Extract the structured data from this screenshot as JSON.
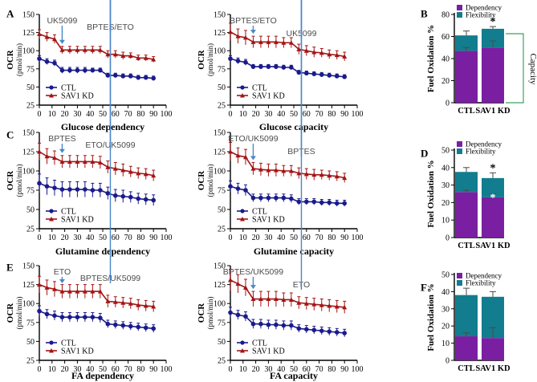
{
  "colors": {
    "ctl": "#1a1a8c",
    "kd": "#a31414",
    "dependency": "#7a1fa2",
    "flexibility": "#127d8e",
    "arrow": "#4a86c8",
    "bracket": "#3aa55e"
  },
  "ocr_axis": {
    "ylabel": "OCR",
    "ylabel_unit": "(pmol/min)",
    "yticks": [
      "25",
      "50",
      "75",
      "100",
      "125",
      "150"
    ],
    "xticks": [
      "0",
      "10",
      "20",
      "30",
      "40",
      "50",
      "60",
      "70",
      "80",
      "90",
      "100"
    ]
  },
  "bar_axis": {
    "ylabel": "Fuel Oxidation %"
  },
  "bar_legend": {
    "dependency": "Dependency",
    "flexibility": "Flexibility"
  },
  "capacity_label": "Capacity",
  "chart_data": [
    {
      "id": "A1",
      "type": "line",
      "panel_letter": "A",
      "title": "Glucose dependency",
      "xlim": [
        0,
        100
      ],
      "ylim": [
        25,
        150
      ],
      "x": [
        0,
        6,
        12,
        18,
        24,
        30,
        36,
        42,
        48,
        54,
        60,
        66,
        72,
        78,
        84,
        90
      ],
      "series": [
        {
          "name": "CTL",
          "values": [
            89,
            85,
            83,
            73,
            73,
            73,
            73,
            73,
            73,
            66,
            66,
            65,
            65,
            63,
            63,
            62
          ],
          "errors": [
            4,
            4,
            4,
            4,
            4,
            4,
            4,
            3,
            3,
            3,
            3,
            3,
            3,
            3,
            3,
            3
          ]
        },
        {
          "name": "SAV1 KD",
          "values": [
            123,
            119,
            116,
            101,
            101,
            101,
            101,
            101,
            101,
            95,
            95,
            93,
            93,
            90,
            90,
            88
          ],
          "errors": [
            6,
            6,
            6,
            5,
            5,
            5,
            5,
            5,
            5,
            5,
            5,
            5,
            4,
            4,
            4,
            4
          ]
        }
      ],
      "annotations": [
        {
          "text": "UK5099",
          "x": 18
        },
        {
          "text": "BPTES/ETO",
          "x": 56
        }
      ]
    },
    {
      "id": "A2",
      "type": "line",
      "panel_letter": "",
      "title": "Glucose capacity",
      "xlim": [
        0,
        100
      ],
      "ylim": [
        25,
        150
      ],
      "x": [
        0,
        6,
        12,
        18,
        24,
        30,
        36,
        42,
        48,
        54,
        60,
        66,
        72,
        78,
        84,
        90
      ],
      "series": [
        {
          "name": "CTL",
          "values": [
            89,
            86,
            84,
            78,
            78,
            78,
            78,
            77,
            77,
            70,
            69,
            68,
            67,
            66,
            65,
            64
          ],
          "errors": [
            4,
            4,
            4,
            3,
            3,
            3,
            3,
            3,
            3,
            3,
            3,
            3,
            3,
            3,
            3,
            3
          ]
        },
        {
          "name": "SAV1 KD",
          "values": [
            126,
            120,
            118,
            112,
            112,
            112,
            112,
            111,
            111,
            102,
            100,
            98,
            97,
            95,
            94,
            92
          ],
          "errors": [
            12,
            10,
            10,
            8,
            8,
            8,
            8,
            7,
            7,
            7,
            7,
            7,
            6,
            6,
            6,
            6
          ]
        }
      ],
      "annotations": [
        {
          "text": "BPTES/ETO",
          "x": 18
        },
        {
          "text": "UK5099",
          "x": 56
        }
      ]
    },
    {
      "id": "B",
      "type": "bar",
      "panel_letter": "B",
      "title": "",
      "ylim": [
        0,
        80
      ],
      "yticks": [
        "0",
        "20",
        "40",
        "60",
        "80"
      ],
      "categories": [
        "CTL",
        "SAV1 KD"
      ],
      "series": [
        {
          "name": "Dependency",
          "values": [
            47,
            50
          ],
          "errors": [
            3,
            6
          ]
        },
        {
          "name": "Flexibility",
          "values": [
            14,
            17
          ],
          "errors": [
            4,
            2
          ]
        }
      ],
      "stars": [
        {
          "category": 1,
          "series": "total",
          "text": "*"
        }
      ]
    },
    {
      "id": "C1",
      "type": "line",
      "panel_letter": "C",
      "title": "Glutamine dependency",
      "xlim": [
        0,
        100
      ],
      "ylim": [
        25,
        150
      ],
      "x": [
        0,
        6,
        12,
        18,
        24,
        30,
        36,
        42,
        48,
        54,
        60,
        66,
        72,
        78,
        84,
        90
      ],
      "series": [
        {
          "name": "CTL",
          "values": [
            84,
            80,
            78,
            76,
            76,
            76,
            76,
            75,
            75,
            71,
            68,
            67,
            66,
            64,
            63,
            62
          ],
          "errors": [
            12,
            11,
            10,
            10,
            10,
            10,
            10,
            9,
            9,
            8,
            8,
            8,
            7,
            7,
            7,
            7
          ]
        },
        {
          "name": "SAV1 KD",
          "values": [
            125,
            119,
            117,
            112,
            112,
            112,
            112,
            112,
            111,
            105,
            103,
            101,
            99,
            97,
            96,
            94
          ],
          "errors": [
            11,
            10,
            9,
            8,
            8,
            8,
            8,
            8,
            8,
            8,
            8,
            8,
            7,
            7,
            7,
            7
          ]
        }
      ],
      "annotations": [
        {
          "text": "BPTES",
          "x": 18
        },
        {
          "text": "ETO/UK5099",
          "x": 56
        }
      ]
    },
    {
      "id": "C2",
      "type": "line",
      "panel_letter": "",
      "title": "Glutamine capacity",
      "xlim": [
        0,
        100
      ],
      "ylim": [
        25,
        150
      ],
      "x": [
        0,
        6,
        12,
        18,
        24,
        30,
        36,
        42,
        48,
        54,
        60,
        66,
        72,
        78,
        84,
        90
      ],
      "series": [
        {
          "name": "CTL",
          "values": [
            80,
            77,
            75,
            65,
            65,
            65,
            65,
            65,
            64,
            60,
            60,
            60,
            59,
            59,
            58,
            58
          ],
          "errors": [
            7,
            7,
            7,
            5,
            5,
            5,
            5,
            5,
            5,
            4,
            4,
            4,
            4,
            4,
            4,
            4
          ]
        },
        {
          "name": "SAV1 KD",
          "values": [
            125,
            120,
            118,
            103,
            102,
            101,
            101,
            100,
            100,
            97,
            96,
            95,
            95,
            94,
            93,
            91
          ],
          "errors": [
            12,
            10,
            10,
            8,
            8,
            8,
            8,
            7,
            7,
            7,
            7,
            7,
            6,
            6,
            6,
            6
          ]
        }
      ],
      "annotations": [
        {
          "text": "ETO/UK5099",
          "x": 18
        },
        {
          "text": "BPTES",
          "x": 56
        }
      ]
    },
    {
      "id": "D",
      "type": "bar",
      "panel_letter": "D",
      "title": "",
      "ylim": [
        0,
        50
      ],
      "yticks": [
        "0",
        "10",
        "20",
        "30",
        "40",
        "50"
      ],
      "categories": [
        "CTL",
        "SAV1 KD"
      ],
      "series": [
        {
          "name": "Dependency",
          "values": [
            26,
            23
          ],
          "errors": [
            1,
            2
          ]
        },
        {
          "name": "Flexibility",
          "values": [
            11.5,
            11
          ],
          "errors": [
            2.5,
            3
          ]
        }
      ],
      "stars": [
        {
          "category": 1,
          "series": "total",
          "text": "*"
        },
        {
          "category": 1,
          "series": "dependency",
          "text": "*"
        }
      ]
    },
    {
      "id": "E1",
      "type": "line",
      "panel_letter": "E",
      "title": "FA dependency",
      "xlim": [
        0,
        100
      ],
      "ylim": [
        25,
        150
      ],
      "x": [
        0,
        6,
        12,
        18,
        24,
        30,
        36,
        42,
        48,
        54,
        60,
        66,
        72,
        78,
        84,
        90
      ],
      "series": [
        {
          "name": "CTL",
          "values": [
            90,
            86,
            84,
            82,
            82,
            82,
            82,
            82,
            81,
            73,
            72,
            71,
            70,
            69,
            68,
            67
          ],
          "errors": [
            7,
            6,
            6,
            6,
            6,
            6,
            6,
            6,
            6,
            5,
            5,
            5,
            5,
            5,
            5,
            5
          ]
        },
        {
          "name": "SAV1 KD",
          "values": [
            125,
            121,
            119,
            116,
            116,
            116,
            116,
            116,
            116,
            103,
            102,
            101,
            100,
            98,
            97,
            96
          ],
          "errors": [
            11,
            10,
            10,
            9,
            9,
            9,
            9,
            9,
            9,
            8,
            7,
            7,
            7,
            7,
            7,
            7
          ]
        }
      ],
      "annotations": [
        {
          "text": "ETO",
          "x": 18
        },
        {
          "text": "BPTES/UK5099",
          "x": 56
        }
      ]
    },
    {
      "id": "E2",
      "type": "line",
      "panel_letter": "",
      "title": "FA capacity",
      "xlim": [
        0,
        100
      ],
      "ylim": [
        25,
        150
      ],
      "x": [
        0,
        6,
        12,
        18,
        24,
        30,
        36,
        42,
        48,
        54,
        60,
        66,
        72,
        78,
        84,
        90
      ],
      "series": [
        {
          "name": "CTL",
          "values": [
            88,
            85,
            83,
            73,
            73,
            72,
            72,
            71,
            71,
            67,
            66,
            65,
            64,
            63,
            62,
            61
          ],
          "errors": [
            7,
            6,
            6,
            6,
            6,
            6,
            6,
            6,
            6,
            5,
            5,
            5,
            5,
            5,
            5,
            5
          ]
        },
        {
          "name": "SAV1 KD",
          "values": [
            131,
            126,
            121,
            106,
            106,
            106,
            106,
            105,
            105,
            101,
            100,
            99,
            98,
            97,
            96,
            95
          ],
          "errors": [
            14,
            12,
            11,
            10,
            10,
            10,
            10,
            9,
            9,
            8,
            8,
            8,
            8,
            8,
            8,
            8
          ]
        }
      ],
      "annotations": [
        {
          "text": "BPTES/UK5099",
          "x": 18
        },
        {
          "text": "ETO",
          "x": 56
        }
      ]
    },
    {
      "id": "F",
      "type": "bar",
      "panel_letter": "F",
      "title": "",
      "ylim": [
        0,
        50
      ],
      "yticks": [
        "0",
        "10",
        "20",
        "30",
        "40",
        "50"
      ],
      "categories": [
        "CTL",
        "SAV1 KD"
      ],
      "series": [
        {
          "name": "Dependency",
          "values": [
            14,
            13
          ],
          "errors": [
            2,
            6
          ]
        },
        {
          "name": "Flexibility",
          "values": [
            24,
            24
          ],
          "errors": [
            4,
            3
          ]
        }
      ],
      "stars": []
    }
  ]
}
